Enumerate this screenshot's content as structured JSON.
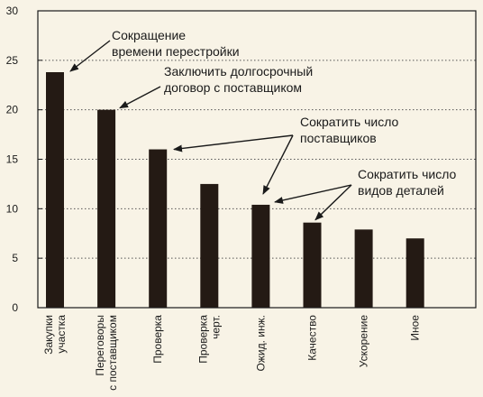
{
  "chart_data": {
    "type": "bar",
    "title": "",
    "xlabel": "",
    "ylabel": "",
    "ylim": [
      0,
      30
    ],
    "yticks": [
      0,
      5,
      10,
      15,
      20,
      25,
      30
    ],
    "grid": "horizontal dotted at 5, 10, 15, 20, 25",
    "categories": [
      [
        "Закупки",
        "участка"
      ],
      [
        "Переговоры",
        "с поставщиком"
      ],
      [
        "Проверка"
      ],
      [
        "Проверка",
        "черт."
      ],
      [
        "Ожид. инж."
      ],
      [
        "Качество"
      ],
      [
        "Ускорение"
      ],
      [
        "Иное"
      ]
    ],
    "values": [
      23.8,
      20.0,
      16.0,
      12.5,
      10.4,
      8.6,
      7.9,
      7.0
    ],
    "colors": {
      "background": "#f8f3e6",
      "bar": "#241a14",
      "axis": "#1a1a1a",
      "grid": "#555555"
    },
    "annotations": [
      {
        "lines": [
          "Сокращение",
          "времени перестройки"
        ],
        "targets": [
          0
        ]
      },
      {
        "lines": [
          "Заключить долгосрочный",
          "договор с поставщиком"
        ],
        "targets": [
          1
        ]
      },
      {
        "lines": [
          "Сократить число",
          "поставщиков"
        ],
        "targets": [
          2,
          4
        ]
      },
      {
        "lines": [
          "Сократить число",
          "видов деталей"
        ],
        "targets": [
          4,
          5
        ]
      }
    ]
  }
}
